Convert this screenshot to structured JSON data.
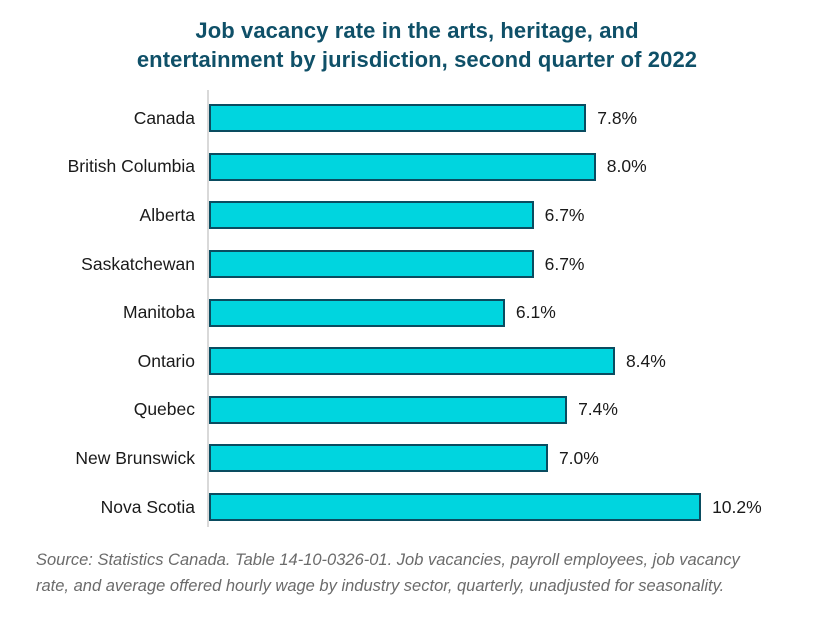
{
  "title": {
    "line1": "Job vacancy rate in the arts, heritage, and",
    "line2": "entertainment by jurisdiction, second quarter of 2022"
  },
  "chart_data": {
    "type": "bar",
    "orientation": "horizontal",
    "title": "Job vacancy rate in the arts, heritage, and entertainment by jurisdiction, second quarter of 2022",
    "categories": [
      "Canada",
      "British Columbia",
      "Alberta",
      "Saskatchewan",
      "Manitoba",
      "Ontario",
      "Quebec",
      "New Brunswick",
      "Nova Scotia"
    ],
    "values": [
      7.8,
      8.0,
      6.7,
      6.7,
      6.1,
      8.4,
      7.4,
      7.0,
      10.2
    ],
    "value_labels": [
      "7.8%",
      "8.0%",
      "6.7%",
      "6.7%",
      "6.1%",
      "8.4%",
      "7.4%",
      "7.0%",
      "10.2%"
    ],
    "unit": "%",
    "xlabel": "",
    "ylabel": "",
    "xlim": [
      0,
      10.2
    ],
    "grid": false,
    "legend": false,
    "data_labels_position": "outside-end",
    "bar_fill_color": "#00d5df",
    "bar_border_color": "#0a4c60",
    "title_color": "#0f5068",
    "axis_line_color": "#d9d9d9"
  },
  "source": {
    "text": "Source: Statistics Canada. Table 14-10-0326-01. Job vacancies, payroll employees, job vacancy\nrate, and average offered hourly wage by industry sector, quarterly, unadjusted for seasonality."
  }
}
